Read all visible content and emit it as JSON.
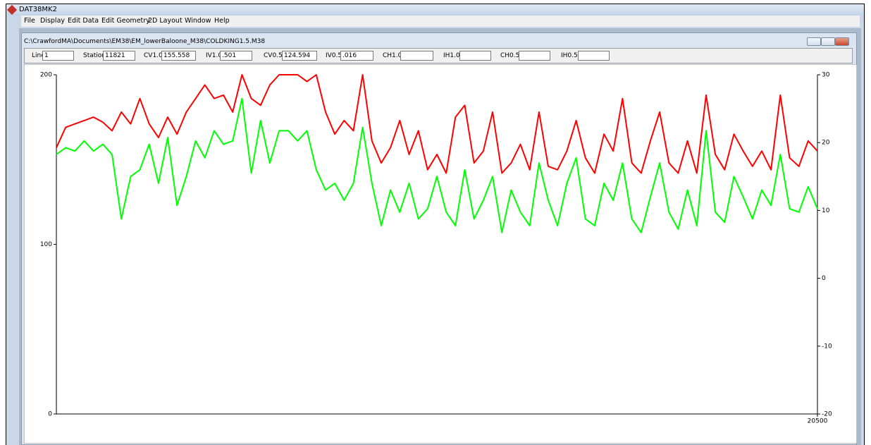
{
  "window": {
    "title": "DAT38MK2"
  },
  "menu": [
    "File",
    "Display",
    "Edit Data",
    "Edit Geometry",
    "2D Layout",
    "Window",
    "Help"
  ],
  "document": {
    "title": "C:\\CrawfordMA\\Documents\\EM38\\EM_lowerBaloone_M38\\COLDKING1.5.M38",
    "fields": [
      {
        "label": "Line",
        "value": "1"
      },
      {
        "label": "Station",
        "value": "11821"
      },
      {
        "label": "CV1.0",
        "value": "155.558"
      },
      {
        "label": "IV1.0",
        "value": ".501"
      },
      {
        "label": "CV0.5",
        "value": "124.594"
      },
      {
        "label": "IV0.5",
        "value": ".016"
      },
      {
        "label": "CH1.0"
      },
      {
        "label": "IH1.0"
      },
      {
        "label": "CH0.5"
      },
      {
        "label": "IH0.5"
      }
    ]
  },
  "chart_data": {
    "type": "line",
    "x": [
      0,
      250,
      500,
      750,
      1000,
      1250,
      1500,
      1750,
      2000,
      2250,
      2500,
      2750,
      3000,
      3250,
      3500,
      3750,
      4000,
      4250,
      4500,
      4750,
      5000,
      5250,
      5500,
      5750,
      6000,
      6250,
      6500,
      6750,
      7000,
      7250,
      7500,
      7750,
      8000,
      8250,
      8500,
      8750,
      9000,
      9250,
      9500,
      9750,
      10000,
      10250,
      10500,
      10750,
      11000,
      11250,
      11500,
      11750,
      12000,
      12250,
      12500,
      12750,
      13000,
      13250,
      13500,
      13750,
      14000,
      14250,
      14500,
      14750,
      15000,
      15250,
      15500,
      15750,
      16000,
      16250,
      16500,
      16750,
      17000,
      17250,
      17500,
      17750,
      18000,
      18250,
      18500,
      18750,
      19000,
      19250,
      19500,
      19750,
      20000,
      20250,
      20500
    ],
    "series": [
      {
        "color": "#ff0000",
        "values": [
          157,
          169,
          171,
          173,
          175,
          172,
          167,
          178,
          171,
          186,
          171,
          163,
          175,
          165,
          178,
          186,
          194,
          186,
          188,
          178,
          200,
          186,
          182,
          194,
          200,
          200,
          200,
          196,
          200,
          178,
          165,
          173,
          167,
          200,
          161,
          148,
          157,
          173,
          153,
          167,
          144,
          153,
          142,
          175,
          182,
          148,
          155,
          178,
          142,
          148,
          159,
          144,
          178,
          146,
          144,
          155,
          173,
          151,
          142,
          165,
          155,
          186,
          148,
          142,
          161,
          178,
          148,
          142,
          161,
          142,
          188,
          153,
          144,
          165,
          155,
          146,
          155,
          144,
          188,
          151,
          146,
          161,
          155
        ]
      },
      {
        "color": "#00ff00",
        "values": [
          153,
          157,
          155,
          161,
          155,
          159,
          153,
          115,
          140,
          144,
          159,
          136,
          163,
          123,
          140,
          161,
          151,
          167,
          159,
          161,
          186,
          142,
          173,
          148,
          167,
          167,
          161,
          167,
          144,
          132,
          136,
          126,
          136,
          169,
          136,
          111,
          132,
          119,
          136,
          115,
          121,
          140,
          119,
          111,
          144,
          115,
          126,
          140,
          107,
          132,
          119,
          111,
          148,
          126,
          111,
          136,
          151,
          115,
          111,
          136,
          126,
          148,
          115,
          107,
          128,
          148,
          119,
          109,
          132,
          111,
          167,
          119,
          113,
          140,
          128,
          115,
          132,
          123,
          153,
          121,
          119,
          134,
          121
        ]
      }
    ],
    "xlim": [
      0,
      20500
    ],
    "xticks": [
      20500
    ],
    "ylim": [
      0,
      200
    ],
    "yticks": [
      0,
      100,
      200
    ],
    "y2lim": [
      -20,
      30
    ],
    "y2ticks": [
      -20,
      -10,
      0,
      10,
      20,
      30
    ]
  }
}
